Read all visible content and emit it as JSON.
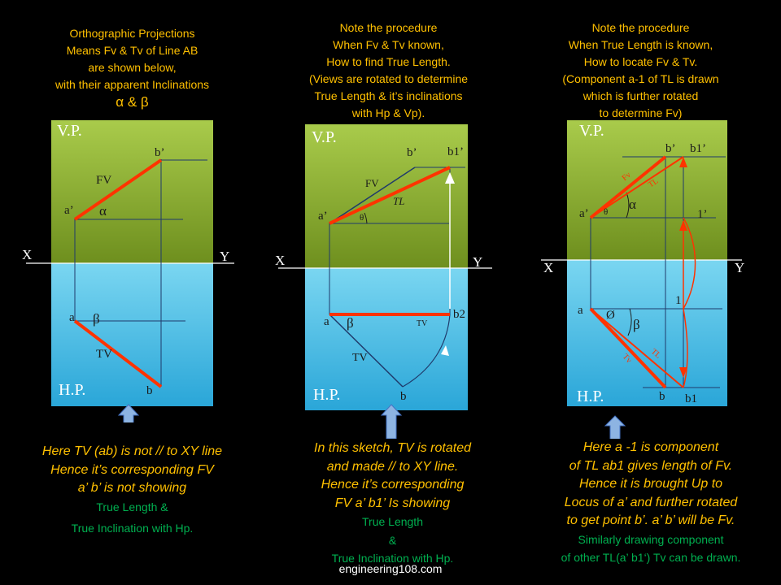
{
  "colors": {
    "vp_top": "#a8c94a",
    "vp_bottom": "#6a8c1c",
    "hp_top": "#6fd1ef",
    "hp_bottom": "#2ea8d9",
    "line": "#ff3300",
    "note": "#ffc000",
    "green_text": "#00b050",
    "arrow_fill": "#8db4e2"
  },
  "panel1": {
    "note": [
      "Orthographic Projections",
      "Means Fv & Tv of Line AB",
      "are shown below,",
      "with their apparent  Inclinations",
      "α & β"
    ],
    "vp": "V.P.",
    "hp": "H.P.",
    "x": "X",
    "y": "Y",
    "labels": {
      "b_prime": "b’",
      "fv": "FV",
      "a_prime": "a’",
      "alpha": "α",
      "a": "a",
      "beta": "β",
      "tv": "TV",
      "b": "b"
    },
    "caption_italic": [
      "Here TV (ab) is not // to XY line",
      "Hence it’s corresponding FV",
      "a’ b’ is not showing"
    ],
    "caption_green": [
      "True Length &",
      "True Inclination with Hp."
    ]
  },
  "panel2": {
    "note": [
      "Note the procedure",
      "When Fv & Tv known,",
      "How to find True Length.",
      "(Views are rotated to determine",
      "True Length & it’s inclinations",
      "with Hp & Vp)."
    ],
    "vp": "V.P.",
    "hp": "H.P.",
    "x": "X",
    "y": "Y",
    "labels": {
      "b_prime": "b’",
      "b1_prime": "b1’",
      "fv": "FV",
      "tl": "TL",
      "a_prime": "a’",
      "theta": "θ",
      "a": "a",
      "beta": "β",
      "tv_small": "TV",
      "b2": "b2",
      "tv": "TV",
      "b": "b"
    },
    "caption_italic": [
      "In this sketch, TV is rotated",
      "and made // to XY line.",
      "Hence it’s corresponding",
      "FV  a’ b1’ Is showing"
    ],
    "caption_green": [
      "True Length",
      "&",
      "True Inclination with Hp."
    ]
  },
  "panel3": {
    "note": [
      "Note the procedure",
      "When True Length is known,",
      "How to locate Fv & Tv.",
      "(Component  a-1 of TL is drawn",
      "which is further rotated",
      "to determine  Fv)"
    ],
    "vp": "V.P.",
    "hp": "H.P.",
    "x": "X",
    "y": "Y",
    "labels": {
      "b_prime": "b’",
      "b1_prime": "b1’",
      "fv": "Fv",
      "tl": "TL",
      "alpha": "α",
      "a_prime": "a’",
      "theta": "θ",
      "one_prime": "1’",
      "one": "1",
      "a": "a",
      "phi": "Ø",
      "beta": "β",
      "tl2": "TL",
      "tv": "Tv",
      "b": "b",
      "b1": "b1"
    },
    "caption_italic": [
      "Here a -1 is component",
      "of TL ab1 gives length of Fv.",
      "Hence it is brought  Up to",
      "Locus of a’ and further rotated",
      "to get point b’.  a’ b’ will be Fv."
    ],
    "caption_green": [
      "Similarly drawing component",
      "of other  TL(a’ b1‘) Tv can be drawn."
    ]
  },
  "watermark": "engineering108.com"
}
